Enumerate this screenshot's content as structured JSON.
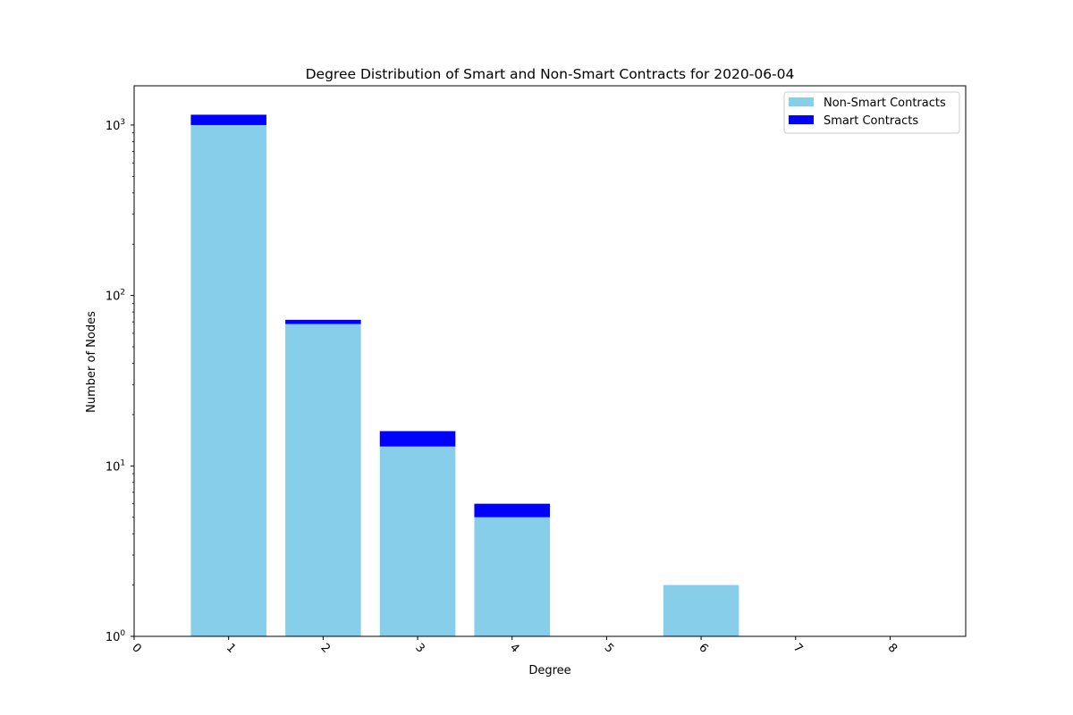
{
  "chart_data": {
    "type": "bar",
    "stacked": true,
    "title": "Degree Distribution of Smart and Non-Smart Contracts for 2020-06-04",
    "xlabel": "Degree",
    "ylabel": "Number of Nodes",
    "yscale": "log",
    "ylim": [
      1,
      1700
    ],
    "xlim": [
      0,
      8.8
    ],
    "x_ticks": [
      "0",
      "1",
      "2",
      "3",
      "4",
      "5",
      "6",
      "7",
      "8"
    ],
    "y_ticks": [
      {
        "value": 1,
        "base": "10",
        "exp": "0"
      },
      {
        "value": 10,
        "base": "10",
        "exp": "1"
      },
      {
        "value": 100,
        "base": "10",
        "exp": "2"
      },
      {
        "value": 1000,
        "base": "10",
        "exp": "3"
      }
    ],
    "categories": [
      1,
      2,
      3,
      4,
      6
    ],
    "series": [
      {
        "name": "Non-Smart Contracts",
        "color": "#87CEEB",
        "values": [
          1000,
          68,
          13,
          5,
          2
        ]
      },
      {
        "name": "Smart Contracts",
        "color": "#0000FF",
        "values": [
          150,
          4,
          3,
          1,
          0
        ]
      }
    ],
    "legend_position": "top-right",
    "grid": false
  }
}
